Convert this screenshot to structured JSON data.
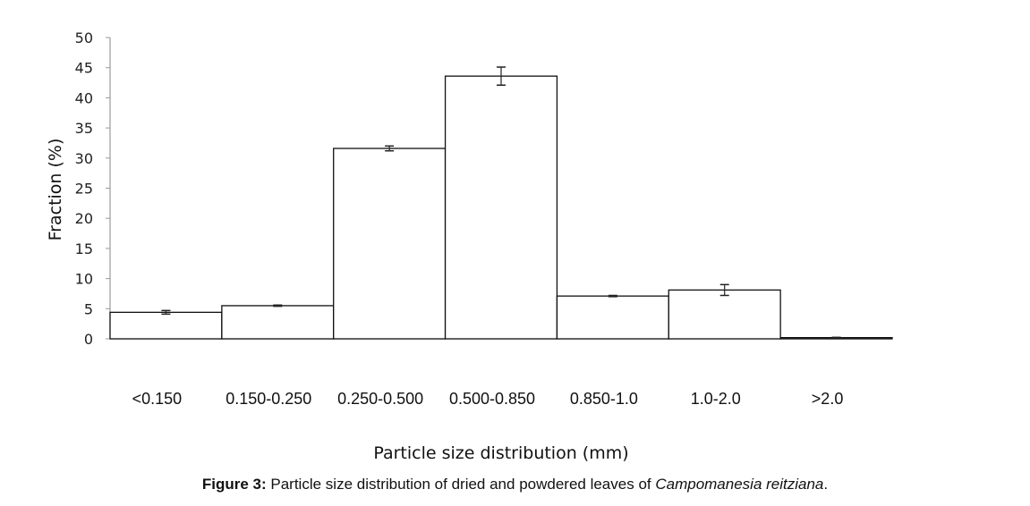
{
  "chart_data": {
    "type": "bar",
    "title": "",
    "xlabel": "Particle size distribution (mm)",
    "ylabel": "Fraction  (%)",
    "ylim": [
      0,
      50
    ],
    "yticks": [
      0,
      5,
      10,
      15,
      20,
      25,
      30,
      35,
      40,
      45,
      50
    ],
    "categories": [
      "<0.150",
      "0.150-0.250",
      "0.250-0.500",
      "0.500-0.850",
      "0.850-1.0",
      "1.0-2.0",
      ">2.0"
    ],
    "values": [
      4.4,
      5.5,
      31.6,
      43.6,
      7.1,
      8.1,
      0.2
    ],
    "errors": [
      0.3,
      0.1,
      0.4,
      1.5,
      0.1,
      0.9,
      0.05
    ],
    "grid": false,
    "legend": "none"
  },
  "caption": {
    "label": "Figure 3:",
    "text": " Particle size distribution of dried and powdered leaves of ",
    "species": "Campomanesia reitziana",
    "end": "."
  }
}
